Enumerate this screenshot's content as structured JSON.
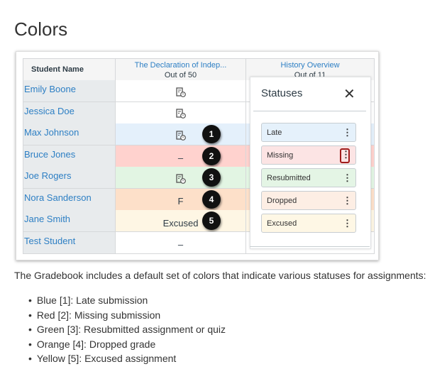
{
  "title": "Colors",
  "gradebook": {
    "student_header": "Student Name",
    "columns": [
      {
        "title": "The Declaration of Indep...",
        "subtitle": "Out of 50"
      },
      {
        "title": "History Overview",
        "subtitle": "Out of 11"
      }
    ],
    "rows": [
      {
        "name": "Emily Boone",
        "grade": "",
        "icon": "submission-clock-icon",
        "status": "none",
        "color": "#ffffff"
      },
      {
        "name": "Jessica Doe",
        "grade": "",
        "icon": "submission-clock-icon",
        "status": "none",
        "color": "#ffffff"
      },
      {
        "name": "Max Johnson",
        "grade": "",
        "icon": "submission-clock-icon",
        "status": "late",
        "color": "#e4f0fb",
        "badge": "1"
      },
      {
        "name": "Bruce Jones",
        "grade": "–",
        "status": "missing",
        "color": "#ffd2ce",
        "badge": "2"
      },
      {
        "name": "Joe Rogers",
        "grade": "",
        "icon": "submission-clock-icon",
        "status": "resubmitted",
        "color": "#e2f5e3",
        "badge": "3"
      },
      {
        "name": "Nora Sanderson",
        "grade": "F",
        "status": "dropped",
        "color": "#fde0c9",
        "badge": "4"
      },
      {
        "name": "Jane Smith",
        "grade": "Excused",
        "status": "excused",
        "color": "#fef6e4",
        "badge": "5"
      },
      {
        "name": "Test Student",
        "grade": "–",
        "status": "none",
        "color": "#ffffff"
      }
    ]
  },
  "statuses_panel": {
    "title": "Statuses",
    "items": [
      {
        "label": "Late",
        "color": "#e5f1fb"
      },
      {
        "label": "Missing",
        "color": "#fce4e4",
        "highlighted": true
      },
      {
        "label": "Resubmitted",
        "color": "#e4f5e5"
      },
      {
        "label": "Dropped",
        "color": "#fdeee4"
      },
      {
        "label": "Excused",
        "color": "#fef7e5"
      }
    ],
    "highlight_color": "#a01c1c"
  },
  "description": "The Gradebook includes a default set of colors that indicate various statuses for assignments:",
  "bullets": [
    "Blue [1]: Late submission",
    "Red [2]: Missing submission",
    "Green [3]: Resubmitted assignment or quiz",
    "Orange [4]: Dropped grade",
    "Yellow [5]: Excused assignment"
  ]
}
